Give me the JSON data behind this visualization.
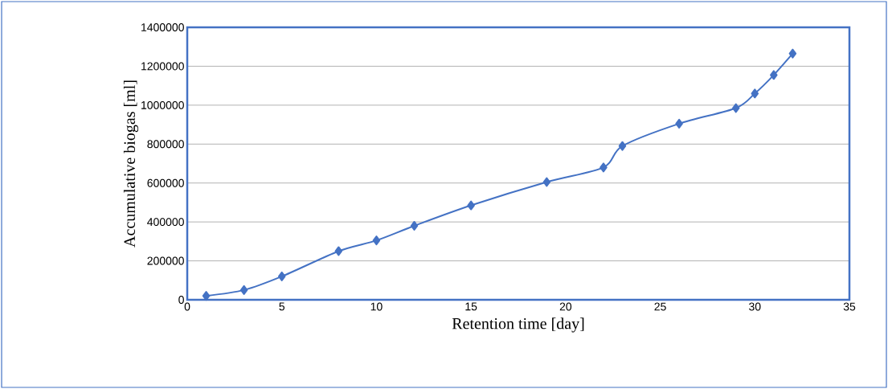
{
  "chart_data": {
    "type": "line",
    "xlabel": "Retention time [day]",
    "ylabel": "Accumulative biogas [ml]",
    "x": [
      1,
      3,
      5,
      8,
      10,
      12,
      15,
      19,
      22,
      23,
      26,
      29,
      30,
      31,
      32
    ],
    "series": [
      {
        "color": "#4472c4",
        "values": [
          20000,
          50000,
          120000,
          250000,
          305000,
          380000,
          485000,
          605000,
          680000,
          790000,
          905000,
          985000,
          1060000,
          1155000,
          1265000
        ]
      }
    ],
    "xlim": [
      0,
      35
    ],
    "xticks": [
      0,
      5,
      10,
      15,
      20,
      25,
      30,
      35
    ],
    "ylim": [
      0,
      1400000
    ],
    "yticks": [
      0,
      200000,
      400000,
      600000,
      800000,
      1000000,
      1200000,
      1400000
    ],
    "grid": "y",
    "marker": "diamond",
    "line_style": "solid"
  }
}
